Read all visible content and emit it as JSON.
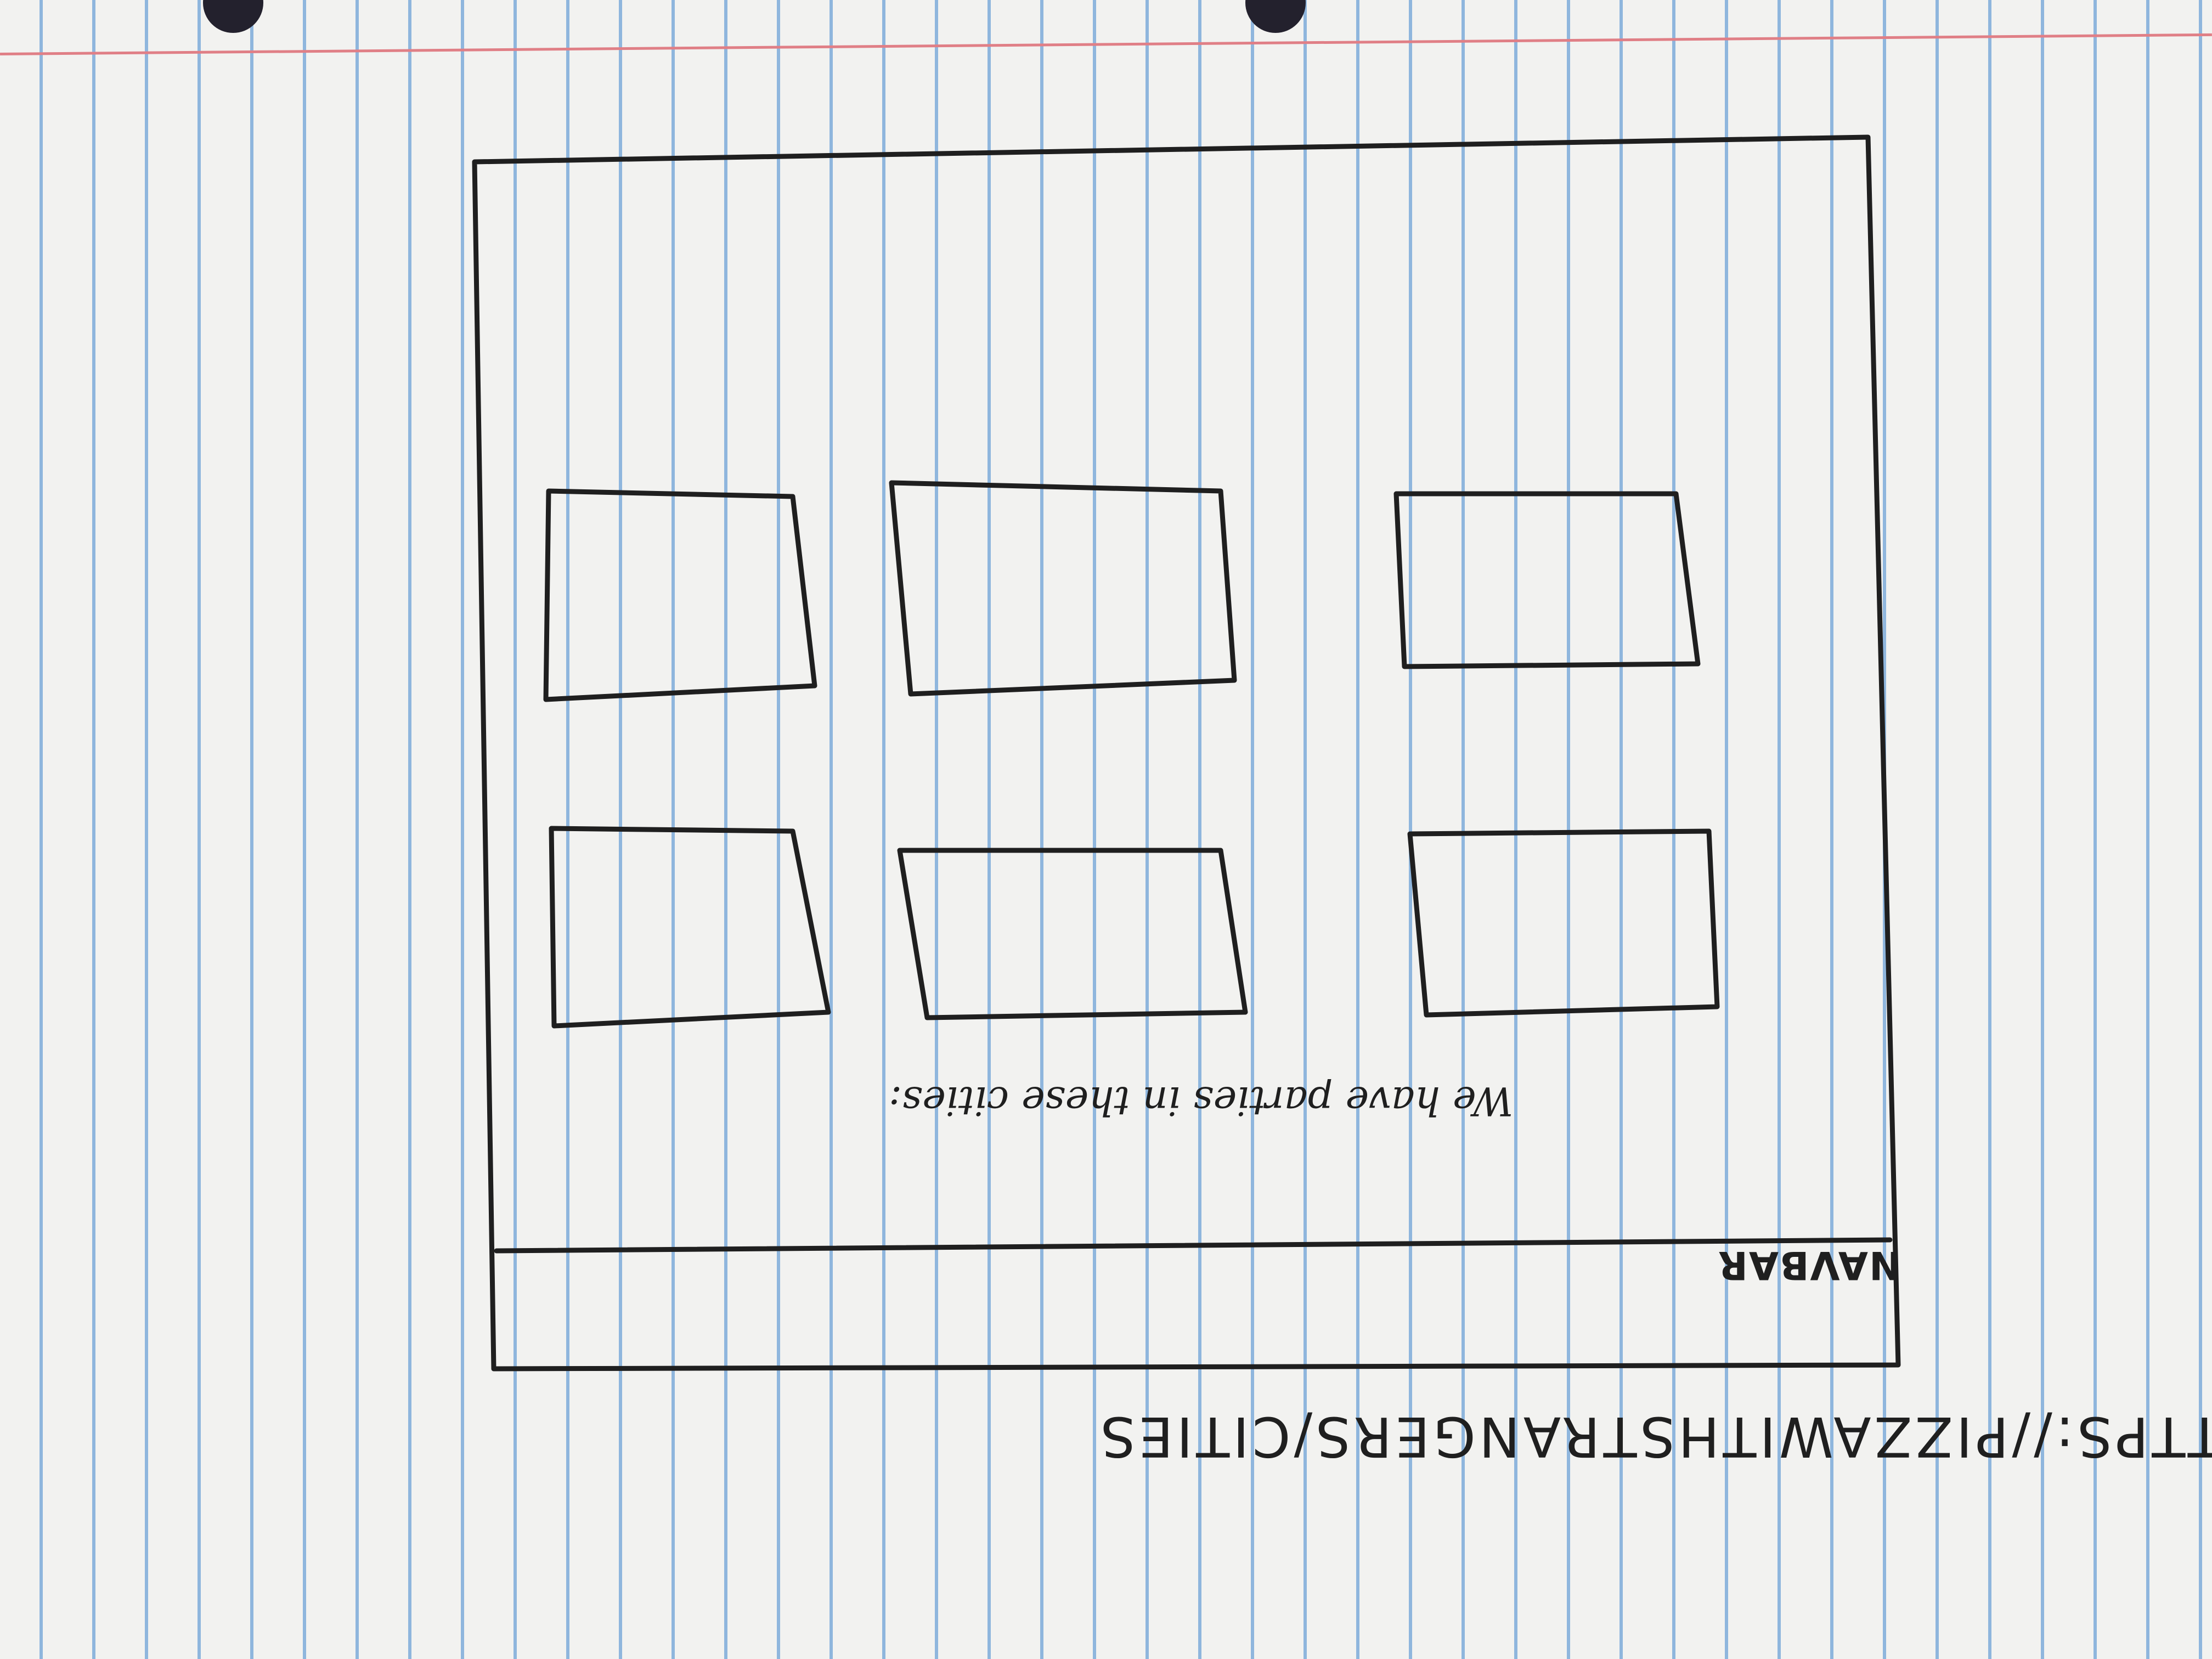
{
  "url_bar": {
    "text": "HTTPS://PIZZAWITHSTRANGERS/CITIES"
  },
  "navbar": {
    "label": "NAVBAR"
  },
  "main": {
    "heading": "We have parties in these cities:",
    "city_cards": [
      "city-card-1",
      "city-card-2",
      "city-card-3",
      "city-card-4",
      "city-card-5",
      "city-card-6"
    ]
  },
  "colors": {
    "paper": "#f2f2f0",
    "rule_line": "#8fb6dd",
    "margin_line": "#e07f86",
    "ink": "#1f1f1f"
  }
}
